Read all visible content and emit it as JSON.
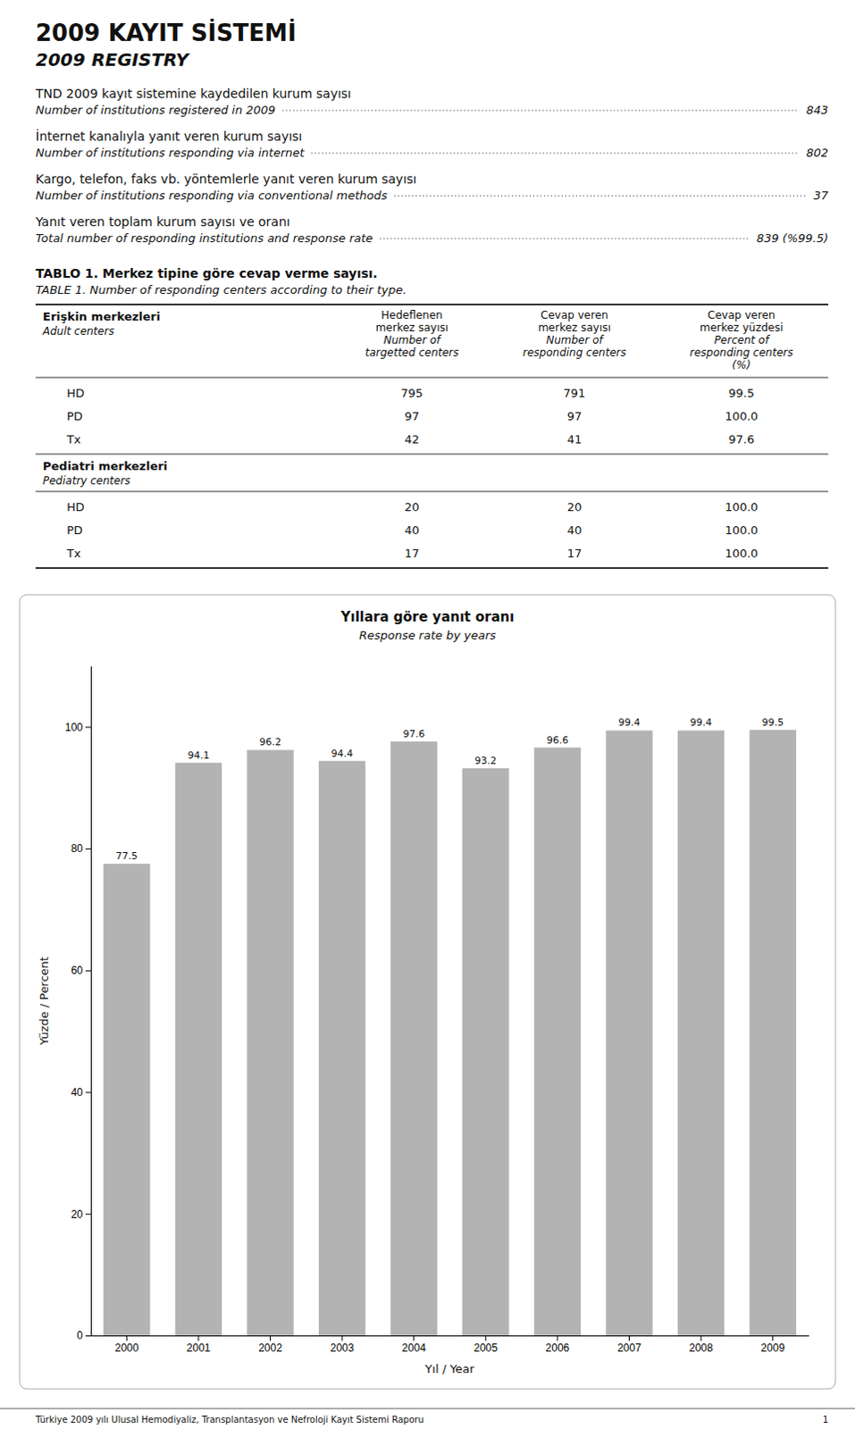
{
  "page": {
    "title": "2009 KAYIT SİSTEMİ",
    "subtitle": "2009 REGISTRY",
    "text_blocks": [
      {
        "turkish": "TND 2009 kayıt sistemine kaydedilen kurum sayısı",
        "english": "Number of institutions registered in 2009",
        "value": "843"
      },
      {
        "turkish": "İnternet kanalıyla yanıt veren kurum sayısı",
        "english": "Number of institutions responding via internet",
        "value": "802"
      },
      {
        "turkish": "Kargo, telefon, faks vb. yöntemlerle yanıt veren kurum sayısı",
        "english": "Number of institutions responding via conventional methods",
        "value": "37"
      },
      {
        "turkish": "Yanıt veren toplam kurum sayısı ve oranı",
        "english": "Total number of responding institutions and response rate",
        "value": "839 (%99.5)"
      }
    ],
    "table": {
      "title": "TABLO 1. Merkez tipine göre cevap verme sayısı.",
      "title_english": "TABLE 1. Number of responding centers according to their type.",
      "headers": [
        [
          "Hedeflenen",
          "merkez sayısı",
          "Number of",
          "targetted centers"
        ],
        [
          "Cevap veren",
          "merkez sayısı",
          "Number of",
          "responding centers"
        ],
        [
          "Cevap veren",
          "merkez yüzdesi",
          "Percent of",
          "responding centers",
          "(%)"
        ]
      ],
      "groups": [
        {
          "name": "Erişkin merkezleri",
          "name_english": "Adult centers",
          "rows": [
            [
              "HD",
              "795",
              "791",
              "99.5"
            ],
            [
              "PD",
              "97",
              "97",
              "100.0"
            ],
            [
              "Tx",
              "42",
              "41",
              "97.6"
            ]
          ]
        },
        {
          "name": "Pediatri merkezleri",
          "name_english": "Pediatry centers",
          "rows": [
            [
              "HD",
              "20",
              "20",
              "100.0"
            ],
            [
              "PD",
              "40",
              "40",
              "100.0"
            ],
            [
              "Tx",
              "17",
              "17",
              "100.0"
            ]
          ]
        }
      ]
    },
    "footer": "Türkiye 2009 yılı Ulusal Hemodiyaliz, Transplantasyon ve Nefroloji Kayıt Sistemi Raporu",
    "page_number": "1"
  },
  "chart_data": {
    "type": "bar",
    "title": "Yıllara göre yanıt oranı",
    "subtitle": "Response rate by years",
    "categories": [
      "2000",
      "2001",
      "2002",
      "2003",
      "2004",
      "2005",
      "2006",
      "2007",
      "2008",
      "2009"
    ],
    "values": [
      77.5,
      94.1,
      96.2,
      94.4,
      97.6,
      93.2,
      96.6,
      99.4,
      99.4,
      99.5
    ],
    "color": "#b3b3b3",
    "ylim": [
      0,
      110
    ],
    "yticks": [
      0,
      20,
      40,
      60,
      80,
      100
    ],
    "xlabel": "Yıl / Year",
    "ylabel": "Yüzde / Percent",
    "data_labels": true,
    "grid": false
  }
}
